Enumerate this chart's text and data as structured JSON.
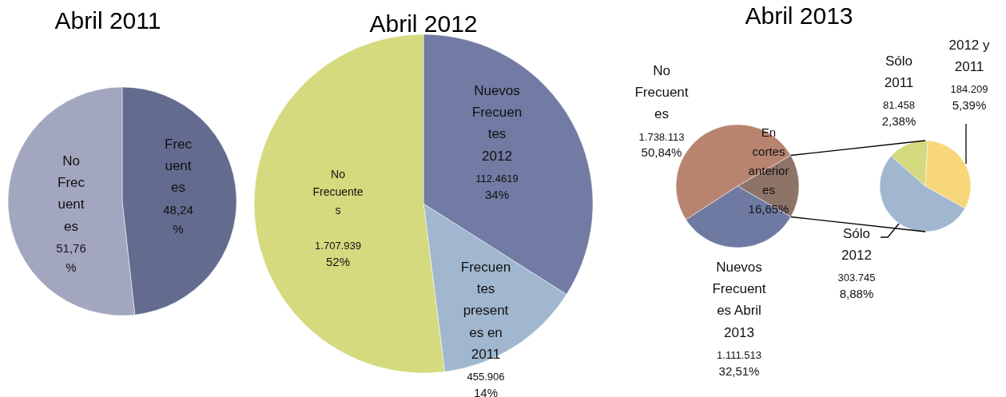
{
  "chart_data": [
    {
      "type": "pie",
      "title": "Abril 2011",
      "categories": [
        "Frecuentes",
        "No Frecuentes"
      ],
      "values": [
        48.24,
        51.76
      ],
      "colors": [
        "#636b8f",
        "#a2a6bf"
      ],
      "value_labels": [
        "48,24%",
        "51,76%"
      ]
    },
    {
      "type": "pie",
      "title": "Abril 2012",
      "categories": [
        "Nuevos Frecuentes 2012",
        "Frecuentes presentes en 2011",
        "No Frecuentes"
      ],
      "values": [
        34,
        14,
        52
      ],
      "colors": [
        "#717ba3",
        "#a1b7cf",
        "#d4da7d"
      ],
      "value_labels": [
        "112.4619\n34%",
        "455.906\n14%",
        "1.707.939\n52%"
      ]
    },
    {
      "type": "pie",
      "title": "Abril 2013",
      "categories": [
        "En cortes anteriores",
        "Nuevos Frecuentes Abril 2013",
        "No Frecuentes"
      ],
      "values": [
        16.65,
        32.51,
        50.84
      ],
      "colors": [
        "#8e7368",
        "#6f7aa3",
        "#b8846f"
      ],
      "value_labels": [
        "16,65%",
        "1.111.513\n32,51%",
        "1.738.113\n50,84%"
      ]
    },
    {
      "type": "pie",
      "categories": [
        "2012 y 2011",
        "Sólo 2012",
        "Sólo 2011"
      ],
      "values": [
        184209,
        303745,
        81458
      ],
      "colors": [
        "#f7d77a",
        "#a1b7cf",
        "#d4da7d"
      ],
      "value_labels": [
        "184.209\n5,39%",
        "303.745\n8,88%",
        "81.458\n2,38%"
      ]
    }
  ]
}
